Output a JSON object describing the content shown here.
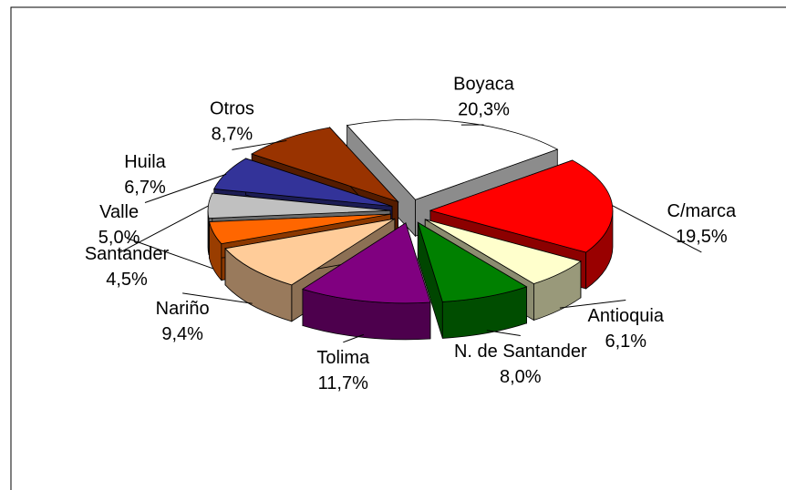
{
  "chart_data": {
    "type": "pie",
    "categories": [
      "Boyaca",
      "C/marca",
      "Antioquia",
      "N. de Santander",
      "Tolima",
      "Nariño",
      "Santander",
      "Valle",
      "Huila",
      "Otros"
    ],
    "values": [
      20.3,
      19.5,
      6.1,
      8.0,
      11.7,
      9.4,
      4.5,
      5.0,
      6.7,
      8.7
    ],
    "value_labels": [
      "20,3%",
      "19,5%",
      "6,1%",
      "8,0%",
      "11,7%",
      "9,4%",
      "4,5%",
      "5,0%",
      "6,7%",
      "8,7%"
    ],
    "colors": [
      "#ffffff",
      "#ff0000",
      "#ffffcc",
      "#008000",
      "#800080",
      "#ffcc99",
      "#ff6600",
      "#c0c0c0",
      "#333399",
      "#993300"
    ]
  }
}
